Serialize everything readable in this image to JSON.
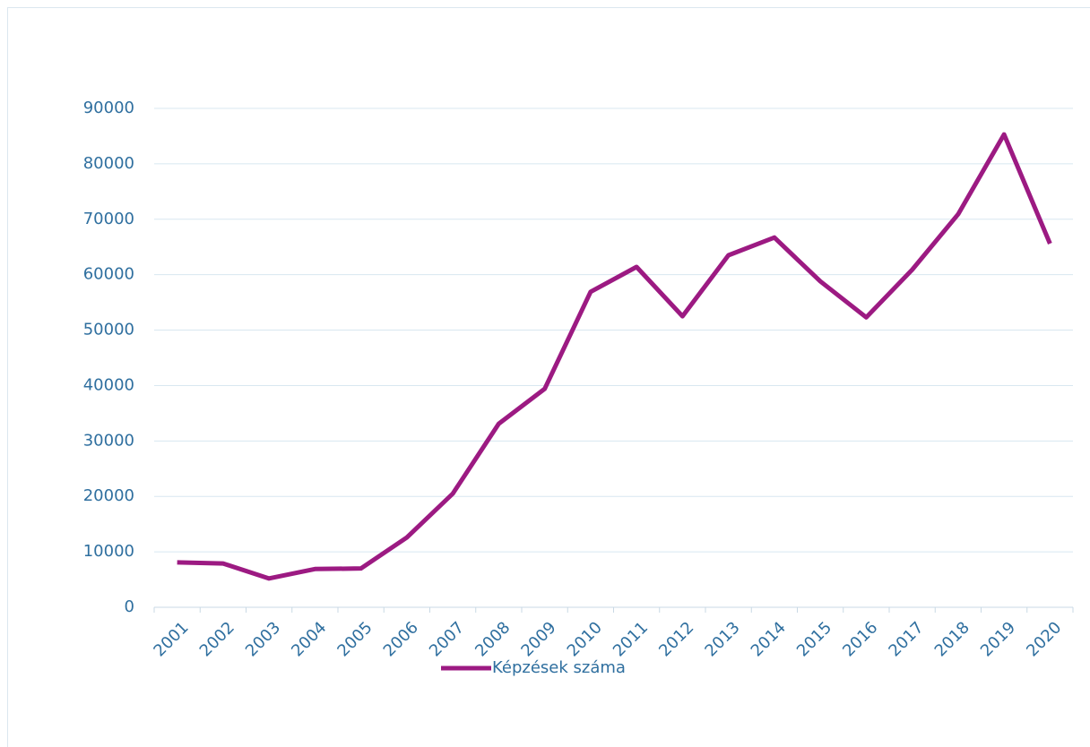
{
  "chart_data": {
    "type": "line",
    "categories": [
      "2001",
      "2002",
      "2003",
      "2004",
      "2005",
      "2006",
      "2007",
      "2008",
      "2009",
      "2010",
      "2011",
      "2012",
      "2013",
      "2014",
      "2015",
      "2016",
      "2017",
      "2018",
      "2019",
      "2020"
    ],
    "series": [
      {
        "name": "Képzések száma",
        "color": "#9c1a82",
        "values": [
          8100,
          7900,
          5200,
          6900,
          7000,
          12600,
          20500,
          33100,
          39400,
          56900,
          61400,
          52500,
          63500,
          66700,
          58800,
          52300,
          60900,
          70900,
          85300,
          65600
        ]
      }
    ],
    "ylim": [
      0,
      90000
    ],
    "yticks": [
      0,
      10000,
      20000,
      30000,
      40000,
      50000,
      60000,
      70000,
      80000,
      90000
    ],
    "grid": true,
    "legend": "bottom"
  }
}
